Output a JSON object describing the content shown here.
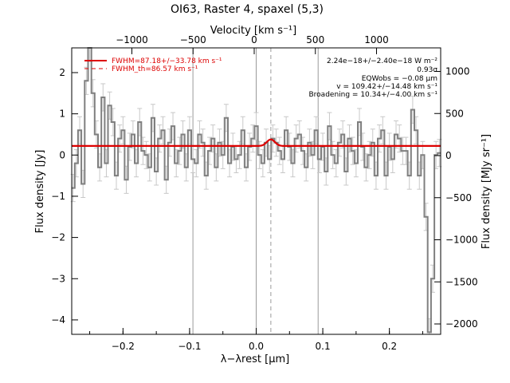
{
  "chart_data": {
    "type": "line",
    "title": "OI63, Raster 4, spaxel (5,3)",
    "xlabel": "λ−λrest [μm]",
    "ylabel_left": "Flux density [Jy]",
    "ylabel_right": "Flux density [MJy sr⁻¹]",
    "top_axis_label": "Velocity [km s⁻¹]",
    "xlim": [
      -0.277,
      0.277
    ],
    "ylim": [
      -4.35,
      2.6
    ],
    "x_ticks": [
      -0.2,
      -0.1,
      0.0,
      0.1,
      0.2
    ],
    "x_tick_labels": [
      "−0.2",
      "−0.1",
      "0.0",
      "0.1",
      "0.2"
    ],
    "y_ticks": [
      -4,
      -3,
      -2,
      -1,
      0,
      1,
      2
    ],
    "y_tick_labels": [
      "−4",
      "−3",
      "−2",
      "−1",
      "0",
      "1",
      "2"
    ],
    "top_ticks_kms": [
      -1000,
      -500,
      0,
      500,
      1000
    ],
    "top_tick_labels": [
      "−1000",
      "−500",
      "0",
      "500",
      "1000"
    ],
    "right_ticks_mjysr": [
      -2000,
      -1500,
      -1000,
      -500,
      0,
      500,
      1000
    ],
    "right_tick_labels": [
      "−2000",
      "−1500",
      "−1000",
      "−500",
      "0",
      "500",
      "1000"
    ],
    "vertical_lines_solid": [
      -0.095,
      0.0,
      0.093
    ],
    "vertical_line_dashed": 0.022,
    "legend": [
      {
        "label": "FWHM=87.18+/−33.78 km s⁻¹",
        "style": "solid",
        "color": "#dd0000"
      },
      {
        "label": "FWHM_th=86.57 km s⁻¹",
        "style": "dashed",
        "color": "#dd0000"
      }
    ],
    "annotations": [
      "2.24e−18+/−2.40e−18 W m⁻²",
      "0.93σ",
      "EQWobs = −0.08 μm",
      "v = 109.42+/−14.48 km s⁻¹",
      "Broadening = 10.34+/−4.00 km s⁻¹"
    ],
    "fit": {
      "continuum": 0.22,
      "center": 0.022,
      "amplitude": 0.16,
      "sigma": 0.006
    },
    "series": [
      {
        "color": "#808080",
        "x": [
          -0.275,
          -0.27,
          -0.265,
          -0.26,
          -0.255,
          -0.25,
          -0.245,
          -0.24,
          -0.235,
          -0.23,
          -0.225,
          -0.22,
          -0.215,
          -0.21,
          -0.205,
          -0.2,
          -0.195,
          -0.19,
          -0.185,
          -0.18,
          -0.175,
          -0.17,
          -0.165,
          -0.16,
          -0.155,
          -0.15,
          -0.145,
          -0.14,
          -0.135,
          -0.13,
          -0.125,
          -0.12,
          -0.115,
          -0.11,
          -0.105,
          -0.1,
          -0.095,
          -0.09,
          -0.085,
          -0.08,
          -0.075,
          -0.07,
          -0.065,
          -0.06,
          -0.055,
          -0.05,
          -0.045,
          -0.04,
          -0.035,
          -0.03,
          -0.025,
          -0.02,
          -0.015,
          -0.01,
          -0.005,
          0.0,
          0.005,
          0.01,
          0.015,
          0.02,
          0.025,
          0.03,
          0.035,
          0.04,
          0.045,
          0.05,
          0.055,
          0.06,
          0.065,
          0.07,
          0.075,
          0.08,
          0.085,
          0.09,
          0.095,
          0.1,
          0.105,
          0.11,
          0.115,
          0.12,
          0.125,
          0.13,
          0.135,
          0.14,
          0.145,
          0.15,
          0.155,
          0.16,
          0.165,
          0.17,
          0.175,
          0.18,
          0.185,
          0.19,
          0.195,
          0.2,
          0.205,
          0.21,
          0.215,
          0.22,
          0.225,
          0.23,
          0.235,
          0.24,
          0.245,
          0.25,
          0.255,
          0.26,
          0.265,
          0.27,
          0.275
        ],
        "y": [
          -0.8,
          -0.2,
          0.6,
          -0.7,
          1.8,
          2.6,
          1.5,
          0.5,
          -0.3,
          1.4,
          -0.2,
          1.2,
          0.8,
          -0.5,
          0.4,
          0.6,
          -0.6,
          0.2,
          0.5,
          -0.2,
          0.8,
          0.1,
          0.0,
          -0.3,
          0.9,
          -0.4,
          0.4,
          0.6,
          -0.6,
          0.3,
          0.7,
          -0.2,
          0.1,
          0.5,
          -0.3,
          0.6,
          -0.1,
          -0.2,
          0.5,
          0.3,
          -0.5,
          0.1,
          0.4,
          -0.3,
          0.3,
          0.0,
          0.9,
          -0.2,
          0.2,
          -0.1,
          0.0,
          0.6,
          -0.3,
          0.2,
          0.4,
          0.7,
          0.0,
          -0.2,
          0.3,
          -0.1,
          0.4,
          0.3,
          0.1,
          -0.1,
          0.6,
          0.2,
          -0.2,
          0.4,
          0.5,
          0.1,
          -0.3,
          0.3,
          0.0,
          0.6,
          -0.1,
          0.2,
          -0.4,
          0.7,
          0.0,
          -0.2,
          0.3,
          0.5,
          -0.4,
          0.4,
          0.1,
          -0.2,
          0.8,
          0.2,
          -0.3,
          0.0,
          0.3,
          -0.5,
          0.4,
          0.6,
          -0.5,
          0.2,
          -0.1,
          0.5,
          0.4,
          0.1,
          0.1,
          -0.5,
          1.1,
          0.6,
          -0.5,
          0.0,
          -1.5,
          -4.3,
          -3.0,
          0.0,
          0.05
        ],
        "err": 0.33
      }
    ]
  }
}
